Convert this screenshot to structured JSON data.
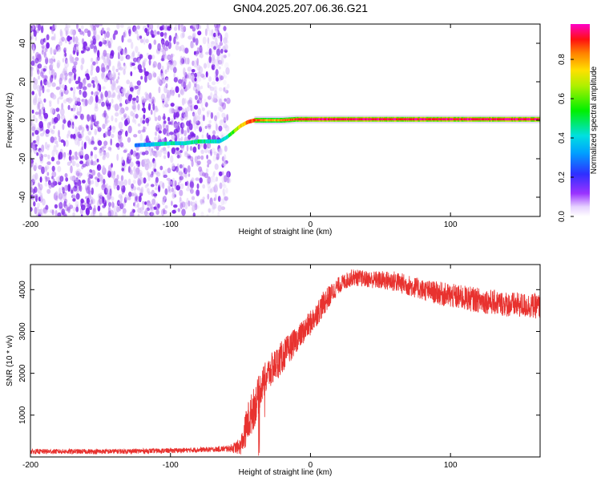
{
  "title": "GN04.2025.207.06.36.G21",
  "colors": {
    "background": "#ffffff",
    "snr_line": "#e8322f",
    "spectrogram_noise": "#8a2be2",
    "ridge": "#ff2020"
  },
  "colorbar": {
    "label": "Normalized spectral amplitude",
    "ticks": [
      "0.0",
      "0.2",
      "0.4",
      "0.6",
      "0.8"
    ],
    "colormap": "rainbow (white to violet to blue to cyan to green to yellow to red to magenta)"
  },
  "chart_data": [
    {
      "type": "heatmap",
      "name": "spectrogram",
      "xlabel": "Height of straight line (km)",
      "ylabel": "Frequency (Hz)",
      "xlim": [
        -200,
        164
      ],
      "ylim": [
        -50,
        50
      ],
      "xticks": [
        "-200",
        "-100",
        "0",
        "100"
      ],
      "yticks": [
        "-40",
        "-20",
        "0",
        "20",
        "40"
      ],
      "xtick_values": [
        -200,
        -100,
        0,
        100
      ],
      "ytick_values": [
        -40,
        -20,
        0,
        20,
        40
      ],
      "noise_region_x": [
        -200,
        -58
      ],
      "ridge": {
        "x": [
          -125,
          -100,
          -90,
          -80,
          -72,
          -65,
          -60,
          -55,
          -50,
          -45,
          -40,
          -30,
          -20,
          -10,
          0,
          20,
          50,
          100,
          164
        ],
        "y": [
          -13,
          -12,
          -12,
          -11,
          -11,
          -11,
          -9,
          -6,
          -3,
          -1,
          0,
          0,
          0,
          0.5,
          0.5,
          0.5,
          0.5,
          0.5,
          0.5
        ],
        "amplitude": [
          0.3,
          0.45,
          0.4,
          0.5,
          0.45,
          0.4,
          0.45,
          0.6,
          0.75,
          0.85,
          0.9,
          0.8,
          0.85,
          0.9,
          0.95,
          0.95,
          0.95,
          0.95,
          0.95
        ]
      },
      "grid": false
    },
    {
      "type": "line",
      "name": "snr",
      "xlabel": "Height of straight line (km)",
      "ylabel": "SNR (10 * v/v)",
      "xlim": [
        -200,
        164
      ],
      "ylim": [
        0,
        4600
      ],
      "xticks": [
        "-200",
        "-100",
        "0",
        "100"
      ],
      "yticks": [
        "1000",
        "2000",
        "3000",
        "4000"
      ],
      "xtick_values": [
        -200,
        -100,
        0,
        100
      ],
      "ytick_values": [
        1000,
        2000,
        3000,
        4000
      ],
      "x": [
        -200,
        -150,
        -100,
        -70,
        -58,
        -50,
        -45,
        -40,
        -35,
        -30,
        -25,
        -20,
        -10,
        0,
        10,
        20,
        30,
        40,
        60,
        80,
        100,
        120,
        140,
        164
      ],
      "y": [
        130,
        130,
        150,
        180,
        200,
        250,
        800,
        1200,
        1700,
        2000,
        2200,
        2400,
        2800,
        3200,
        3700,
        4100,
        4300,
        4250,
        4200,
        4000,
        3850,
        3750,
        3650,
        3600
      ],
      "noise_amplitude": [
        60,
        60,
        60,
        60,
        80,
        200,
        500,
        500,
        400,
        400,
        400,
        400,
        300,
        300,
        300,
        200,
        200,
        200,
        250,
        250,
        300,
        300,
        300,
        300
      ],
      "grid": false
    }
  ]
}
